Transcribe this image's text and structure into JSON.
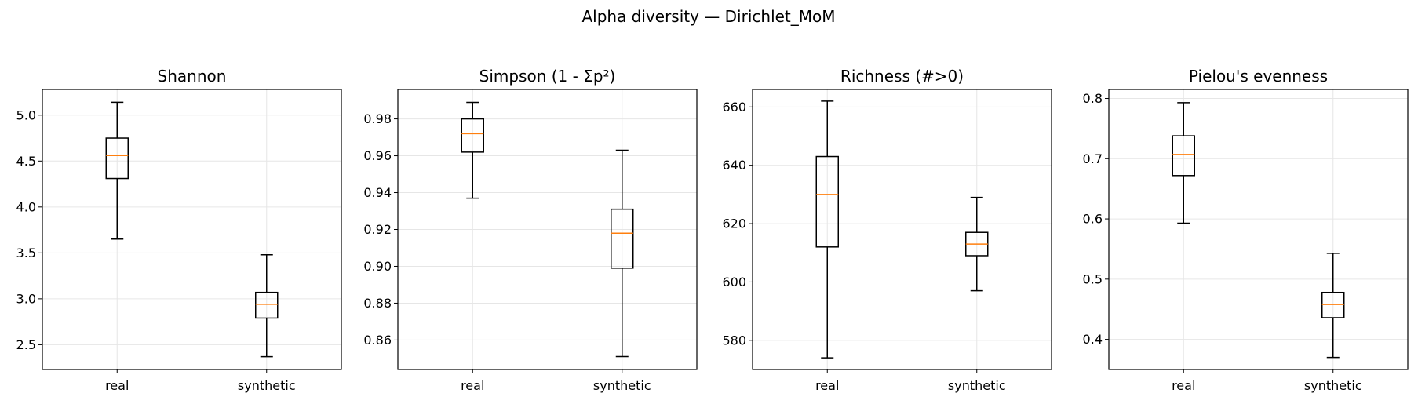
{
  "figure": {
    "suptitle": "Alpha diversity — Dirichlet_MoM"
  },
  "style": {
    "box_color": "#000000",
    "median_color": "#ff7f0e",
    "grid_color": "#e6e6e6"
  },
  "chart_data": [
    {
      "type": "boxplot",
      "title": "Shannon",
      "categories": [
        "real",
        "synthetic"
      ],
      "ylim": [
        2.23,
        5.28
      ],
      "yticks": [
        2.5,
        3.0,
        3.5,
        4.0,
        4.5,
        5.0
      ],
      "ytick_labels": [
        "2.5",
        "3.0",
        "3.5",
        "4.0",
        "4.5",
        "5.0"
      ],
      "grid": true,
      "boxes": [
        {
          "name": "real",
          "whisker_low": 3.65,
          "q1": 4.31,
          "median": 4.56,
          "q3": 4.75,
          "whisker_high": 5.14
        },
        {
          "name": "synthetic",
          "whisker_low": 2.37,
          "q1": 2.79,
          "median": 2.94,
          "q3": 3.07,
          "whisker_high": 3.48
        }
      ]
    },
    {
      "type": "boxplot",
      "title": "Simpson (1 - Σp²)",
      "categories": [
        "real",
        "synthetic"
      ],
      "ylim": [
        0.844,
        0.996
      ],
      "yticks": [
        0.86,
        0.88,
        0.9,
        0.92,
        0.94,
        0.96,
        0.98
      ],
      "ytick_labels": [
        "0.86",
        "0.88",
        "0.90",
        "0.92",
        "0.94",
        "0.96",
        "0.98"
      ],
      "grid": true,
      "boxes": [
        {
          "name": "real",
          "whisker_low": 0.937,
          "q1": 0.962,
          "median": 0.972,
          "q3": 0.98,
          "whisker_high": 0.989
        },
        {
          "name": "synthetic",
          "whisker_low": 0.851,
          "q1": 0.899,
          "median": 0.918,
          "q3": 0.931,
          "whisker_high": 0.963
        }
      ]
    },
    {
      "type": "boxplot",
      "title": "Richness (#>0)",
      "categories": [
        "real",
        "synthetic"
      ],
      "ylim": [
        570,
        666
      ],
      "yticks": [
        580,
        600,
        620,
        640,
        660
      ],
      "ytick_labels": [
        "580",
        "600",
        "620",
        "640",
        "660"
      ],
      "grid": true,
      "boxes": [
        {
          "name": "real",
          "whisker_low": 574,
          "q1": 612,
          "median": 630,
          "q3": 643,
          "whisker_high": 662
        },
        {
          "name": "synthetic",
          "whisker_low": 597,
          "q1": 609,
          "median": 613,
          "q3": 617,
          "whisker_high": 629
        }
      ]
    },
    {
      "type": "boxplot",
      "title": "Pielou's evenness",
      "categories": [
        "real",
        "synthetic"
      ],
      "ylim": [
        0.35,
        0.815
      ],
      "yticks": [
        0.4,
        0.5,
        0.6,
        0.7,
        0.8
      ],
      "ytick_labels": [
        "0.4",
        "0.5",
        "0.6",
        "0.7",
        "0.8"
      ],
      "grid": true,
      "boxes": [
        {
          "name": "real",
          "whisker_low": 0.593,
          "q1": 0.672,
          "median": 0.707,
          "q3": 0.738,
          "whisker_high": 0.793
        },
        {
          "name": "synthetic",
          "whisker_low": 0.37,
          "q1": 0.436,
          "median": 0.458,
          "q3": 0.478,
          "whisker_high": 0.543
        }
      ]
    }
  ]
}
